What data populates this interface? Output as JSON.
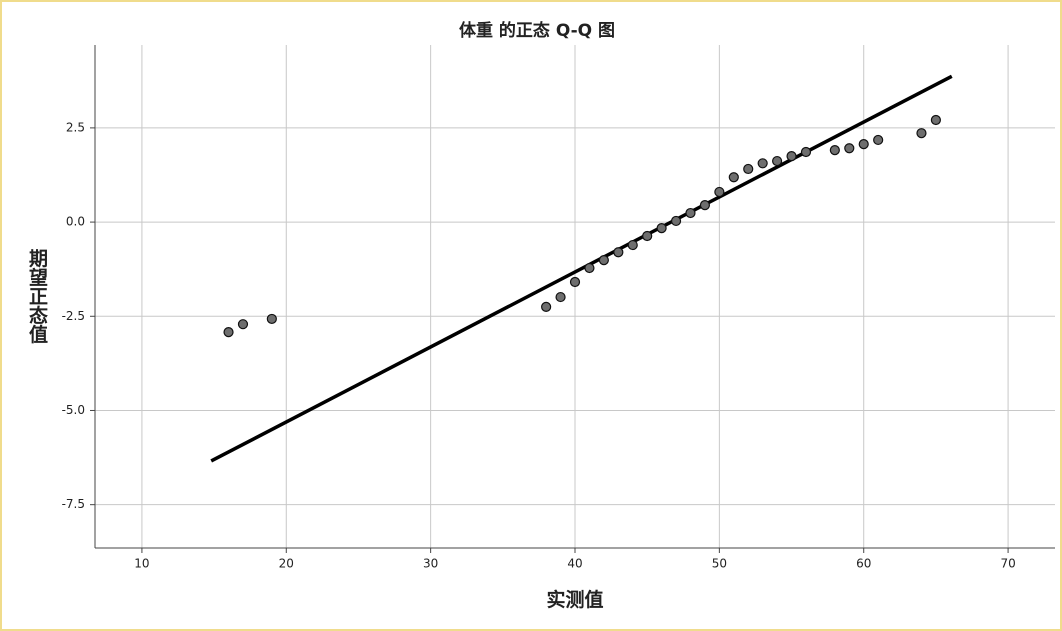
{
  "chart_data": {
    "type": "scatter",
    "title": "体重 的正态 Q-Q 图",
    "x_label": "实测值",
    "y_label": "期望正态值",
    "xlim": [
      6.75,
      73.25
    ],
    "xticks": [
      10,
      20,
      30,
      40,
      50,
      60,
      70
    ],
    "ylim": [
      -8.65,
      4.7
    ],
    "yticks": [
      2.5,
      {
        "value": 0,
        "label": "0.0"
      },
      -2.5,
      {
        "value": -5,
        "label": "-5.0"
      },
      -7.5
    ],
    "grid": true,
    "series": [
      {
        "color": "#6e6e6e",
        "x": [
          16,
          17,
          19,
          38,
          39,
          40,
          41,
          42,
          43,
          44,
          45,
          46,
          47,
          48,
          49,
          50,
          51,
          52,
          53,
          54,
          55,
          56,
          58,
          59,
          60,
          61,
          64,
          65
        ],
        "values": [
          -2.92,
          -2.71,
          -2.57,
          -2.25,
          -1.99,
          -1.59,
          -1.22,
          -1.01,
          -0.8,
          -0.61,
          -0.37,
          -0.16,
          0.03,
          0.24,
          0.45,
          0.8,
          1.19,
          1.41,
          1.56,
          1.62,
          1.75,
          1.86,
          1.91,
          1.96,
          2.07,
          2.18,
          2.36,
          2.71
        ]
      }
    ],
    "reference_line": {
      "color": "#000000",
      "x": [
        14.8,
        66.1
      ],
      "values": [
        -6.34,
        3.87
      ]
    }
  }
}
